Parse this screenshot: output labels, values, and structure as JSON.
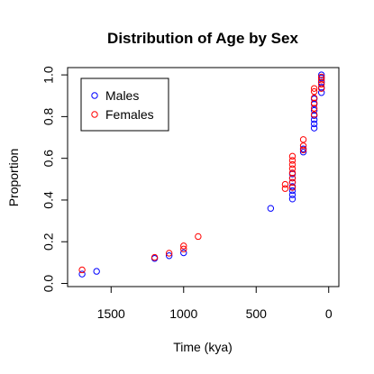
{
  "chart_data": {
    "type": "scatter",
    "title": "Distribution of Age by Sex",
    "xlabel": "Time (kya)",
    "ylabel": "Proportion",
    "xlim": [
      1800,
      -70
    ],
    "ylim": [
      -0.015,
      1.035
    ],
    "x_reversed": true,
    "x_ticks": [
      1500,
      1000,
      500,
      0
    ],
    "y_ticks": [
      0.0,
      0.2,
      0.4,
      0.6,
      0.8,
      1.0
    ],
    "y_tick_labels": [
      "0.0",
      "0.2",
      "0.4",
      "0.6",
      "0.8",
      "1.0"
    ],
    "grid": false,
    "legend_position": "top-left",
    "series": [
      {
        "name": "Males",
        "color": "#0000ff",
        "marker": "open-circle",
        "points": [
          [
            1700,
            0.045
          ],
          [
            1600,
            0.058
          ],
          [
            1200,
            0.12
          ],
          [
            1100,
            0.133
          ],
          [
            1000,
            0.147
          ],
          [
            400,
            0.36
          ],
          [
            250,
            0.405
          ],
          [
            250,
            0.425
          ],
          [
            250,
            0.445
          ],
          [
            250,
            0.465
          ],
          [
            250,
            0.485
          ],
          [
            250,
            0.505
          ],
          [
            250,
            0.525
          ],
          [
            175,
            0.63
          ],
          [
            175,
            0.645
          ],
          [
            100,
            0.745
          ],
          [
            100,
            0.765
          ],
          [
            100,
            0.785
          ],
          [
            100,
            0.805
          ],
          [
            100,
            0.83
          ],
          [
            100,
            0.86
          ],
          [
            100,
            0.885
          ],
          [
            50,
            0.915
          ],
          [
            50,
            0.94
          ],
          [
            50,
            0.965
          ],
          [
            50,
            0.985
          ],
          [
            50,
            1.0
          ]
        ]
      },
      {
        "name": "Females",
        "color": "#ff0000",
        "marker": "open-circle",
        "points": [
          [
            1700,
            0.065
          ],
          [
            1200,
            0.125
          ],
          [
            1100,
            0.145
          ],
          [
            1000,
            0.165
          ],
          [
            1000,
            0.18
          ],
          [
            900,
            0.225
          ],
          [
            300,
            0.455
          ],
          [
            300,
            0.475
          ],
          [
            250,
            0.46
          ],
          [
            250,
            0.485
          ],
          [
            250,
            0.505
          ],
          [
            250,
            0.53
          ],
          [
            250,
            0.55
          ],
          [
            250,
            0.57
          ],
          [
            250,
            0.59
          ],
          [
            250,
            0.61
          ],
          [
            175,
            0.64
          ],
          [
            175,
            0.66
          ],
          [
            175,
            0.69
          ],
          [
            100,
            0.81
          ],
          [
            100,
            0.84
          ],
          [
            100,
            0.865
          ],
          [
            100,
            0.89
          ],
          [
            100,
            0.92
          ],
          [
            100,
            0.935
          ],
          [
            50,
            0.935
          ],
          [
            50,
            0.955
          ],
          [
            50,
            0.975
          ],
          [
            50,
            0.99
          ]
        ]
      }
    ]
  }
}
